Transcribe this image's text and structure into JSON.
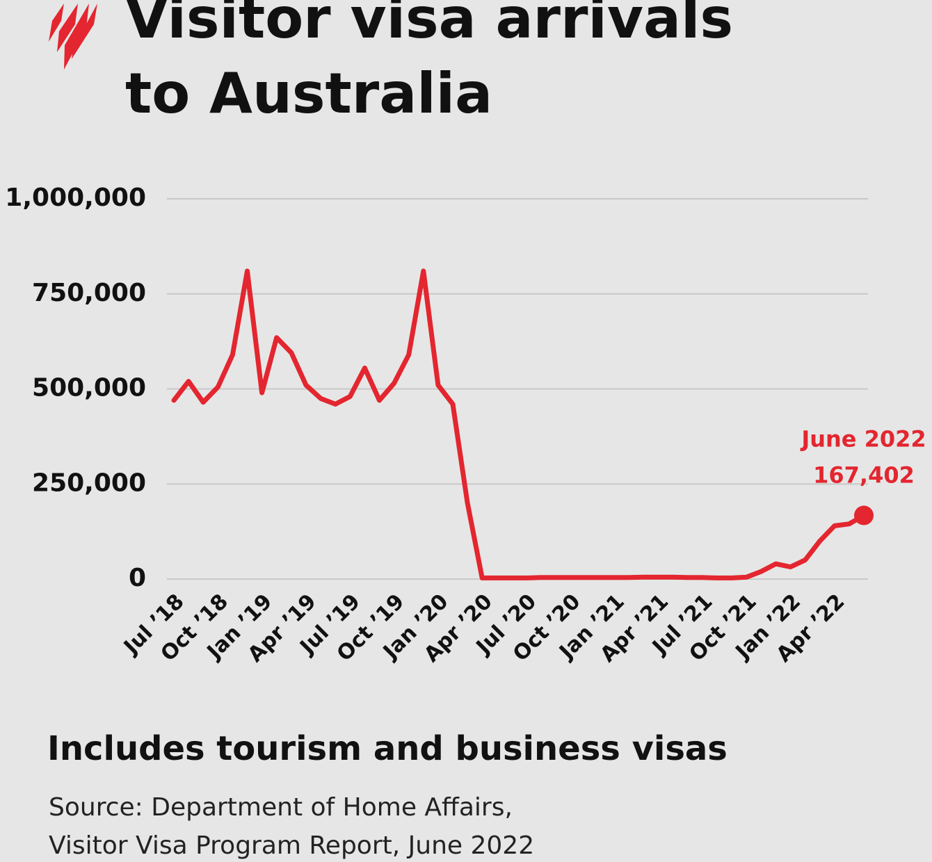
{
  "chart_data": {
    "type": "line",
    "title": [
      "Visitor visa arrivals",
      "to Australia"
    ],
    "categories": [
      "Jul ’18",
      null,
      null,
      "Oct ’18",
      null,
      null,
      "Jan ’19",
      null,
      null,
      "Apr ’19",
      null,
      null,
      "Jul ’19",
      null,
      null,
      "Oct ’19",
      null,
      null,
      "Jan ’20",
      null,
      null,
      "Apr ’20",
      null,
      null,
      "Jul ’20",
      null,
      null,
      "Oct ’20",
      null,
      null,
      "Jan ’21",
      null,
      null,
      "Apr ’21",
      null,
      null,
      "Jul ’21",
      null,
      null,
      "Oct ’21",
      null,
      null,
      "Jan ’22",
      null,
      null,
      "Apr ’22",
      null,
      null
    ],
    "series": [
      {
        "name": "Visitor visa arrivals",
        "color": "#e3262f",
        "values": [
          470000,
          520000,
          465000,
          505000,
          590000,
          810000,
          490000,
          635000,
          595000,
          510000,
          475000,
          460000,
          480000,
          555000,
          470000,
          515000,
          590000,
          810000,
          510000,
          460000,
          200000,
          3000,
          3000,
          3000,
          3000,
          4000,
          4000,
          4000,
          4000,
          4000,
          4000,
          4000,
          5000,
          5000,
          5000,
          4000,
          4000,
          3000,
          3000,
          5000,
          20000,
          40000,
          32000,
          50000,
          100000,
          140000,
          145000,
          167402
        ],
        "value_labels": [
          null,
          null,
          null,
          null,
          null,
          null,
          null,
          null,
          null,
          null,
          null,
          null,
          null,
          null,
          null,
          null,
          null,
          null,
          null,
          null,
          null,
          null,
          null,
          null,
          null,
          null,
          null,
          null,
          null,
          null,
          null,
          null,
          null,
          null,
          null,
          null,
          null,
          null,
          null,
          null,
          null,
          null,
          null,
          null,
          null,
          null,
          null,
          "167,402"
        ]
      }
    ],
    "annotation": "June 2022",
    "ylim": [
      0,
      1000000
    ],
    "yticks": [
      0,
      {
        "value": 250000,
        "label": "250,000"
      },
      {
        "value": 500000,
        "label": "500,000"
      },
      {
        "value": 750000,
        "label": "750,000"
      },
      {
        "value": 1000000,
        "label": "1,000,000"
      }
    ],
    "grid": true,
    "note": "Includes tourism and business visas",
    "source": [
      "Source: Department of Home Affairs,",
      "Visitor Visa Program Report, June 2022"
    ]
  }
}
